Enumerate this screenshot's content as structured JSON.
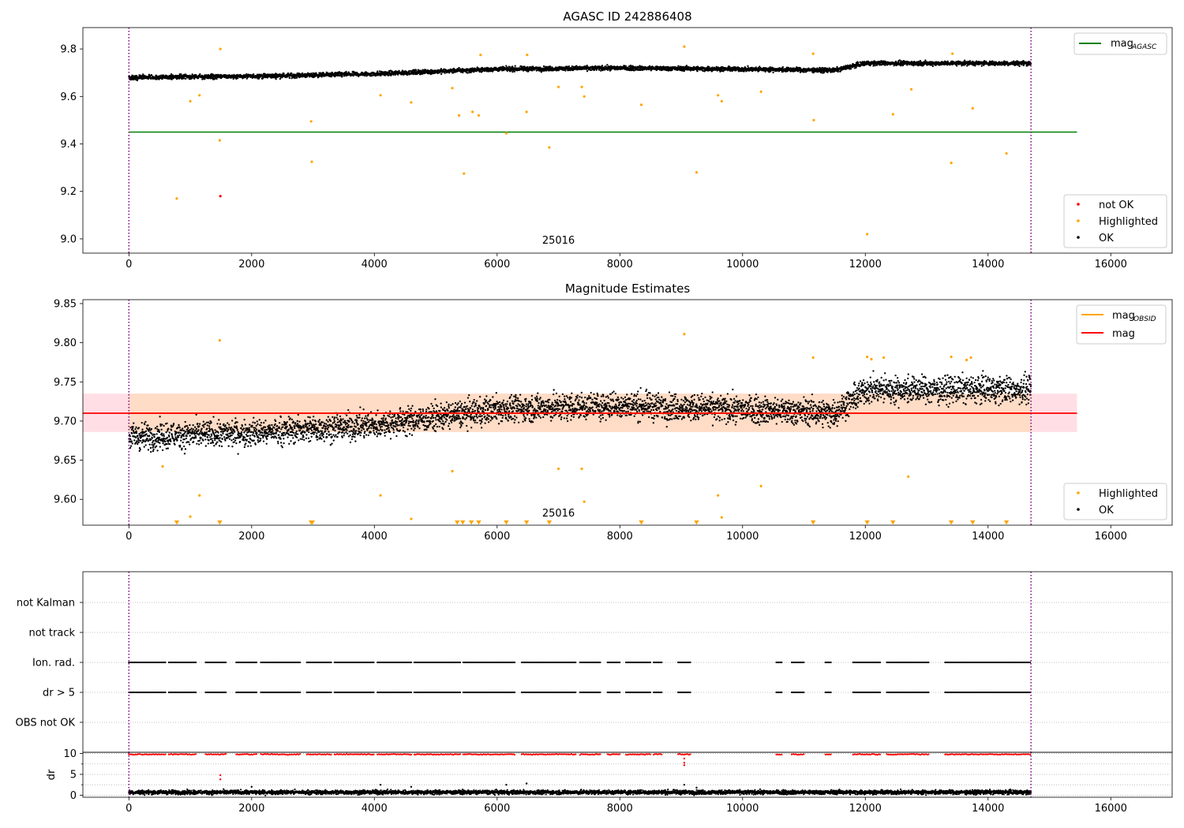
{
  "chart_data": [
    {
      "type": "scatter",
      "title": "AGASC ID 242886408",
      "xlim": [
        -750,
        17000
      ],
      "ylim": [
        8.94,
        9.89
      ],
      "x_ticks": [
        0,
        2000,
        4000,
        6000,
        8000,
        10000,
        12000,
        14000,
        16000
      ],
      "x_tick_labels": [
        "0",
        "2000",
        "4000",
        "6000",
        "8000",
        "10000",
        "12000",
        "14000",
        "16000"
      ],
      "y_ticks": [
        9.0,
        9.2,
        9.4,
        9.6,
        9.8
      ],
      "y_tick_labels": [
        "9.0",
        "9.2",
        "9.4",
        "9.6",
        "9.8"
      ],
      "obsid_label": "25016",
      "obsid_label_pos": [
        7000,
        8.98
      ],
      "obsid_bounds": [
        0,
        14700
      ],
      "hlines": [
        {
          "name": "mag",
          "name_sub": "AGASC",
          "value": 9.45,
          "x_range": [
            0,
            15450
          ],
          "color": "#008000"
        }
      ],
      "line_legend": {
        "items": [
          {
            "label": "mag",
            "sub": "AGASC",
            "color": "#008000"
          }
        ],
        "loc": "upper right"
      },
      "scatter_legend": {
        "items": [
          {
            "label": "not OK",
            "color": "#ff0000"
          },
          {
            "label": "Highlighted",
            "color": "#ffa500"
          },
          {
            "label": "OK",
            "color": "#000000"
          }
        ],
        "loc": "lower right"
      },
      "ok_trend": {
        "x": [
          0,
          2000,
          4000,
          6000,
          8000,
          10000,
          11500,
          12000,
          14700
        ],
        "y": [
          9.68,
          9.685,
          9.695,
          9.715,
          9.72,
          9.715,
          9.71,
          9.74,
          9.74
        ],
        "spread": 0.012
      },
      "highlighted": {
        "x": [
          780,
          1000,
          1150,
          1480,
          1490,
          2970,
          2980,
          4100,
          4600,
          5270,
          5380,
          5460,
          5600,
          5700,
          5730,
          6150,
          6480,
          6490,
          6850,
          7000,
          7380,
          7420,
          8350,
          9050,
          9250,
          9600,
          9660,
          10300,
          11150,
          11160,
          12030,
          12450,
          12750,
          13400,
          13420,
          13750,
          14300
        ],
        "y": [
          9.17,
          9.58,
          9.605,
          9.415,
          9.8,
          9.495,
          9.325,
          9.605,
          9.575,
          9.635,
          9.52,
          9.275,
          9.535,
          9.52,
          9.775,
          9.445,
          9.535,
          9.775,
          9.385,
          9.64,
          9.64,
          9.6,
          9.565,
          9.81,
          9.28,
          9.605,
          9.58,
          9.62,
          9.78,
          9.5,
          9.02,
          9.525,
          9.63,
          9.32,
          9.78,
          9.55,
          9.36
        ]
      },
      "not_ok": {
        "x": [
          1490
        ],
        "y": [
          9.18
        ]
      }
    },
    {
      "type": "scatter",
      "title": "Magnitude Estimates",
      "xlim": [
        -750,
        17000
      ],
      "ylim": [
        9.567,
        9.855
      ],
      "x_ticks": [
        0,
        2000,
        4000,
        6000,
        8000,
        10000,
        12000,
        14000,
        16000
      ],
      "x_tick_labels": [
        "0",
        "2000",
        "4000",
        "6000",
        "8000",
        "10000",
        "12000",
        "14000",
        "16000"
      ],
      "y_ticks": [
        9.6,
        9.65,
        9.7,
        9.75,
        9.8,
        9.85
      ],
      "y_tick_labels": [
        "9.60",
        "9.65",
        "9.70",
        "9.75",
        "9.80",
        "9.85"
      ],
      "obsid_label": "25016",
      "obsid_label_pos": [
        7000,
        9.578
      ],
      "obsid_bounds": [
        0,
        14700
      ],
      "mag": {
        "value": 9.71,
        "band": [
          9.686,
          9.735
        ],
        "x_range": [
          -750,
          15450
        ],
        "color": "#ff0000",
        "band_color": "#ffc0cb"
      },
      "mag_obsid": {
        "value": 9.71,
        "band": [
          9.686,
          9.735
        ],
        "x_range": [
          0,
          14700
        ],
        "color": "#ffa500",
        "band_color": "#ffdab9"
      },
      "line_legend": {
        "items": [
          {
            "label": "mag",
            "sub": "OBSID",
            "color": "#ffa500"
          },
          {
            "label": "mag",
            "sub": "",
            "color": "#ff0000"
          }
        ],
        "loc": "upper right"
      },
      "scatter_legend": {
        "items": [
          {
            "label": "Highlighted",
            "color": "#ffa500"
          },
          {
            "label": "OK",
            "color": "#000000"
          }
        ],
        "loc": "lower right"
      },
      "ok_trend": {
        "x": [
          0,
          2000,
          4000,
          6000,
          8000,
          10000,
          11500,
          12000,
          14700
        ],
        "y": [
          9.68,
          9.685,
          9.695,
          9.715,
          9.72,
          9.715,
          9.71,
          9.74,
          9.74
        ],
        "spread": 0.012
      },
      "highlighted": {
        "x": [
          550,
          1000,
          1150,
          1480,
          4100,
          4600,
          5270,
          7000,
          7380,
          7420,
          9050,
          9600,
          9660,
          10300,
          11150,
          12030,
          12100,
          12300,
          12700,
          13400,
          13650,
          13720
        ],
        "y": [
          9.642,
          9.578,
          9.605,
          9.803,
          9.605,
          9.575,
          9.636,
          9.639,
          9.639,
          9.597,
          9.811,
          9.605,
          9.577,
          9.617,
          9.781,
          9.782,
          9.779,
          9.781,
          9.629,
          9.782,
          9.778,
          9.781
        ]
      },
      "clipped_markers": {
        "x": [
          780,
          1480,
          2970,
          2990,
          5350,
          5440,
          5580,
          5700,
          6150,
          6480,
          6850,
          8350,
          9250,
          11150,
          12030,
          12450,
          13400,
          13750,
          14300
        ],
        "y": 9.5705
      }
    },
    {
      "type": "scatter",
      "title": "",
      "xlim": [
        -750,
        17000
      ],
      "y_categories": [
        "not Kalman",
        "not track",
        "Ion. rad.",
        "dr > 5",
        "OBS not OK"
      ],
      "obsid_bounds": [
        0,
        14700
      ],
      "flag_clusters": {
        "dr > 5": [
          [
            0,
            600
          ],
          [
            650,
            1100
          ],
          [
            1250,
            1600
          ],
          [
            1750,
            2100
          ],
          [
            2150,
            2800
          ],
          [
            2900,
            3300
          ],
          [
            3350,
            4000
          ],
          [
            4050,
            4600
          ],
          [
            4650,
            5400
          ],
          [
            5450,
            6300
          ],
          [
            6400,
            7300
          ],
          [
            7350,
            7700
          ],
          [
            7800,
            8000
          ],
          [
            8100,
            8500
          ],
          [
            8550,
            8700
          ],
          [
            8950,
            9150
          ],
          [
            10550,
            10650
          ],
          [
            10800,
            11000
          ],
          [
            11350,
            11450
          ],
          [
            11800,
            12250
          ],
          [
            12350,
            13050
          ],
          [
            13300,
            14700
          ]
        ],
        "Ion. rad.": [
          [
            0,
            600
          ],
          [
            650,
            1100
          ],
          [
            1250,
            1600
          ],
          [
            1750,
            2100
          ],
          [
            2150,
            2800
          ],
          [
            2900,
            3300
          ],
          [
            3350,
            4000
          ],
          [
            4050,
            4600
          ],
          [
            4650,
            5400
          ],
          [
            5450,
            6300
          ],
          [
            6400,
            7300
          ],
          [
            7350,
            7700
          ],
          [
            7800,
            8000
          ],
          [
            8100,
            8500
          ],
          [
            8550,
            8700
          ],
          [
            8950,
            9150
          ],
          [
            10550,
            10650
          ],
          [
            10800,
            11000
          ],
          [
            11350,
            11450
          ],
          [
            11800,
            12250
          ],
          [
            12350,
            13050
          ],
          [
            13300,
            14700
          ]
        ]
      }
    },
    {
      "type": "scatter",
      "title": "",
      "ylabel": "dr",
      "xlim": [
        -750,
        17000
      ],
      "ylim": [
        -0.5,
        10.3
      ],
      "x_ticks": [
        0,
        2000,
        4000,
        6000,
        8000,
        10000,
        12000,
        14000,
        16000
      ],
      "x_tick_labels": [
        "0",
        "2000",
        "4000",
        "6000",
        "8000",
        "10000",
        "12000",
        "14000",
        "16000"
      ],
      "y_ticks": [
        0,
        5,
        10
      ],
      "y_tick_labels": [
        "0",
        "5",
        "10"
      ],
      "obsid_bounds": [
        0,
        14700
      ],
      "ok_level": {
        "value": 0.7,
        "spread": 0.35
      },
      "capped_value": 9.8,
      "red_outliers": {
        "x": [
          1490,
          1490,
          9050,
          9050,
          9050
        ],
        "y": [
          4.8,
          3.8,
          8.8,
          7.8,
          7.2
        ]
      },
      "black_outliers": {
        "x": [
          2000,
          4100,
          4600,
          6150,
          6480,
          9050,
          9250
        ],
        "y": [
          2.0,
          2.5,
          2.0,
          2.5,
          2.8,
          2.5,
          1.8
        ]
      }
    }
  ]
}
